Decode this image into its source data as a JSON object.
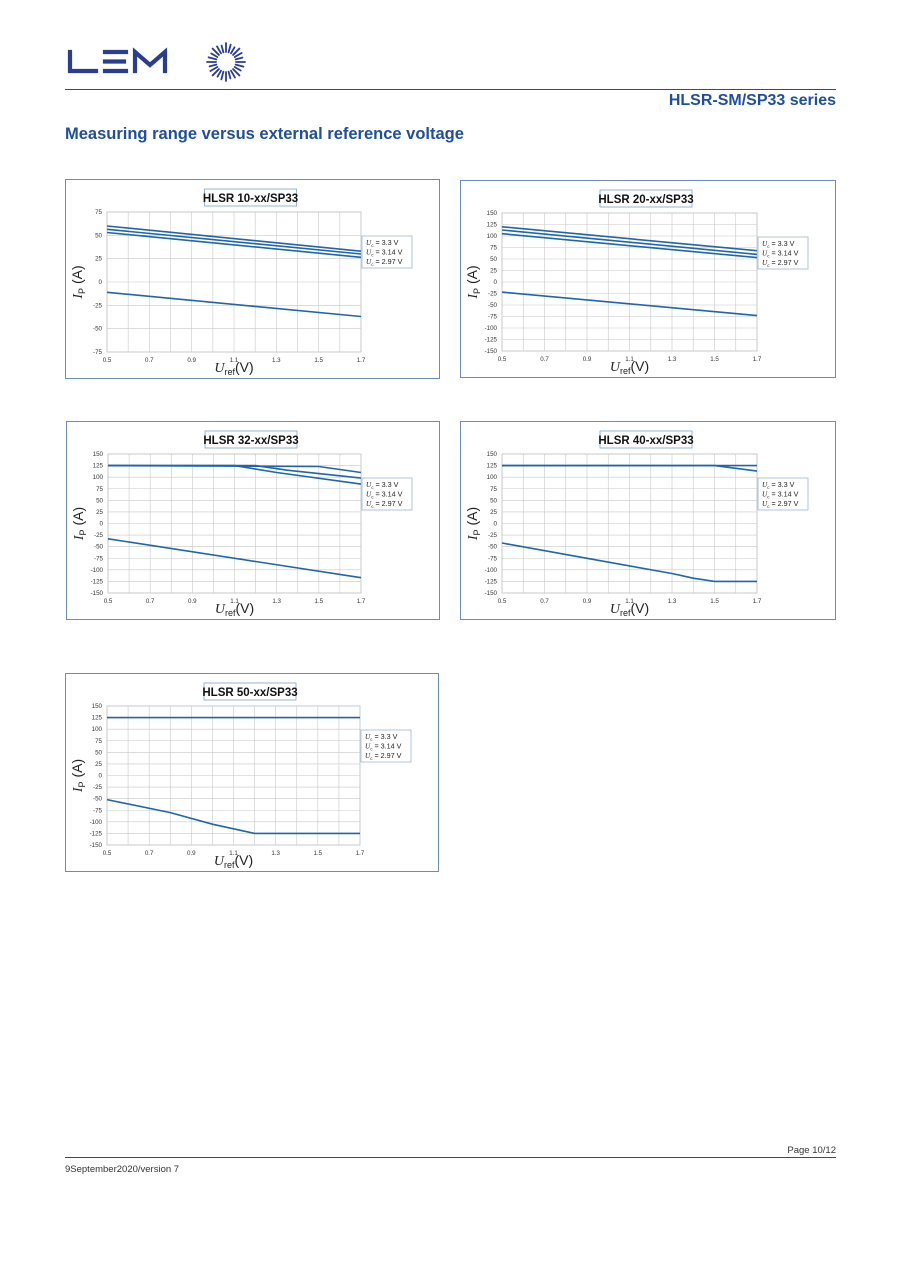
{
  "header": {
    "series_title": "HLSR-SM/SP33 series",
    "section_title": "Measuring range versus external reference voltage",
    "logo_text": "LEM",
    "brand_color": "#2a3d8f"
  },
  "footer": {
    "page_number": "Page 10/12",
    "date_version": "9September2020/version 7"
  },
  "chart_data": [
    {
      "type": "line",
      "title": "HLSR 10-xx/SP33",
      "xlabel_main": "U",
      "xlabel_sub": "ref",
      "xlabel_unit": "(V)",
      "ylabel_main": "I",
      "ylabel_sub": "P",
      "ylabel_unit": "(A)",
      "xlim": [
        0.5,
        1.7
      ],
      "ylim": [
        -75,
        75
      ],
      "xticks": [
        0.5,
        0.7,
        0.9,
        1.1,
        1.3,
        1.5,
        1.7
      ],
      "yticks": [
        -75,
        -50,
        -25,
        0,
        25,
        50,
        75
      ],
      "grid": true,
      "legend": [
        "U_c = 3.3 V",
        "U_c = 3.14 V",
        "U_c = 2.97 V"
      ],
      "series": [
        {
          "x": [
            0.5,
            1.7
          ],
          "y": [
            60,
            33
          ]
        },
        {
          "x": [
            0.5,
            1.7
          ],
          "y": [
            56.5,
            30
          ]
        },
        {
          "x": [
            0.5,
            1.7
          ],
          "y": [
            53,
            26.5
          ]
        },
        {
          "x": [
            0.5,
            1.7
          ],
          "y": [
            -11,
            -37
          ]
        }
      ]
    },
    {
      "type": "line",
      "title": "HLSR 20-xx/SP33",
      "xlabel_main": "U",
      "xlabel_sub": "ref",
      "xlabel_unit": "(V)",
      "ylabel_main": "I",
      "ylabel_sub": "P",
      "ylabel_unit": "(A)",
      "xlim": [
        0.5,
        1.7
      ],
      "ylim": [
        -150,
        150
      ],
      "xticks": [
        0.5,
        0.7,
        0.9,
        1.1,
        1.3,
        1.5,
        1.7
      ],
      "yticks": [
        -150,
        -125,
        -100,
        -75,
        -50,
        -25,
        0,
        25,
        50,
        75,
        100,
        125,
        150
      ],
      "grid": true,
      "legend": [
        "U_c = 3.3 V",
        "U_c = 3.14 V",
        "U_c = 2.97 V"
      ],
      "series": [
        {
          "x": [
            0.5,
            1.7
          ],
          "y": [
            120,
            68
          ]
        },
        {
          "x": [
            0.5,
            1.7
          ],
          "y": [
            113,
            60
          ]
        },
        {
          "x": [
            0.5,
            1.7
          ],
          "y": [
            105,
            53
          ]
        },
        {
          "x": [
            0.5,
            1.7
          ],
          "y": [
            -22,
            -73
          ]
        }
      ]
    },
    {
      "type": "line",
      "title": "HLSR 32-xx/SP33",
      "xlabel_main": "U",
      "xlabel_sub": "ref",
      "xlabel_unit": "(V)",
      "ylabel_main": "I",
      "ylabel_sub": "P",
      "ylabel_unit": "(A)",
      "xlim": [
        0.5,
        1.7
      ],
      "ylim": [
        -150,
        150
      ],
      "xticks": [
        0.5,
        0.7,
        0.9,
        1.1,
        1.3,
        1.5,
        1.7
      ],
      "yticks": [
        -150,
        -125,
        -100,
        -75,
        -50,
        -25,
        0,
        25,
        50,
        75,
        100,
        125,
        150
      ],
      "grid": true,
      "legend": [
        "U_c = 3.3 V",
        "U_c = 3.14 V",
        "U_c = 2.97 V"
      ],
      "series": [
        {
          "x": [
            0.5,
            1.5,
            1.7
          ],
          "y": [
            125,
            123,
            110
          ]
        },
        {
          "x": [
            0.5,
            1.2,
            1.35,
            1.7
          ],
          "y": [
            125,
            125,
            115,
            98
          ]
        },
        {
          "x": [
            0.5,
            1.1,
            1.3,
            1.7
          ],
          "y": [
            125,
            125,
            110,
            85
          ]
        },
        {
          "x": [
            0.5,
            1.7
          ],
          "y": [
            -33,
            -117
          ]
        }
      ]
    },
    {
      "type": "line",
      "title": "HLSR 40-xx/SP33",
      "xlabel_main": "U",
      "xlabel_sub": "ref",
      "xlabel_unit": "(V)",
      "ylabel_main": "I",
      "ylabel_sub": "P",
      "ylabel_unit": "(A)",
      "xlim": [
        0.5,
        1.7
      ],
      "ylim": [
        -150,
        150
      ],
      "xticks": [
        0.5,
        0.7,
        0.9,
        1.1,
        1.3,
        1.5,
        1.7
      ],
      "yticks": [
        -150,
        -125,
        -100,
        -75,
        -50,
        -25,
        0,
        25,
        50,
        75,
        100,
        125,
        150
      ],
      "grid": true,
      "legend": [
        "U_c = 3.3 V",
        "U_c = 3.14 V",
        "U_c = 2.97 V"
      ],
      "series": [
        {
          "x": [
            0.5,
            1.7
          ],
          "y": [
            125,
            125
          ]
        },
        {
          "x": [
            0.5,
            1.5,
            1.7
          ],
          "y": [
            125,
            125,
            113
          ]
        },
        {
          "x": [
            0.5,
            0.9,
            1.3,
            1.4,
            1.5,
            1.7
          ],
          "y": [
            -42,
            -75,
            -108,
            -118,
            -125,
            -125
          ]
        }
      ]
    },
    {
      "type": "line",
      "title": "HLSR 50-xx/SP33",
      "xlabel_main": "U",
      "xlabel_sub": "ref",
      "xlabel_unit": "(V)",
      "ylabel_main": "I",
      "ylabel_sub": "P",
      "ylabel_unit": "(A)",
      "xlim": [
        0.5,
        1.7
      ],
      "ylim": [
        -150,
        150
      ],
      "xticks": [
        0.5,
        0.7,
        0.9,
        1.1,
        1.3,
        1.5,
        1.7
      ],
      "yticks": [
        -150,
        -125,
        -100,
        -75,
        -50,
        -25,
        0,
        25,
        50,
        75,
        100,
        125,
        150
      ],
      "grid": true,
      "legend": [
        "U_c = 3.3 V",
        "U_c = 3.14 V",
        "U_c = 2.97 V"
      ],
      "series": [
        {
          "x": [
            0.5,
            1.7
          ],
          "y": [
            125,
            125
          ]
        },
        {
          "x": [
            0.5,
            0.8,
            1.0,
            1.2,
            1.7
          ],
          "y": [
            -52,
            -80,
            -105,
            -125,
            -125
          ]
        }
      ]
    }
  ]
}
